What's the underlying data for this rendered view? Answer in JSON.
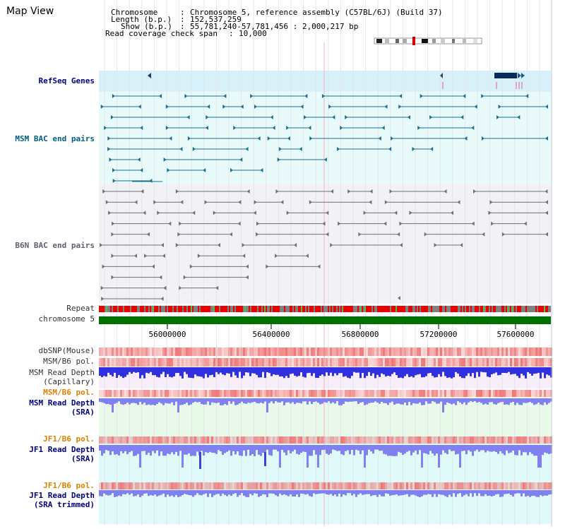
{
  "app": {
    "title": "Map View"
  },
  "info": [
    {
      "label": "Chromosome",
      "value": "Chromosome 5, reference assembly (C57BL/6J) (Build 37)"
    },
    {
      "label": "Length (b.p.)",
      "value": "152,537,259"
    },
    {
      "label": "Show (b.p.)",
      "value": "55,781,240-57,781,456 : 2,000,217 bp"
    },
    {
      "label": "Read coverage check span",
      "value": "10,000"
    }
  ],
  "tracks": {
    "refseq": "RefSeq Genes",
    "msm_bac": "MSM BAC end pairs",
    "b6n_bac": "B6N BAC end pairs",
    "repeat": "Repeat",
    "chromosome": "chromosome 5",
    "dbsnp": "dbSNP(Mouse)",
    "msm_b6_pol_1": "MSM/B6 pol.",
    "msm_depth_cap_1": "MSM Read Depth",
    "msm_depth_cap_2": "(Capillary)",
    "msm_b6_pol_2": "MSM/B6 pol.",
    "msm_depth_sra_1": "MSM Read Depth",
    "msm_depth_sra_2": "(SRA)",
    "jf1_b6_pol_1": "JF1/B6 pol.",
    "jf1_depth_sra_1": "JF1 Read Depth",
    "jf1_depth_sra_2": "(SRA)",
    "jf1_b6_pol_2": "JF1/B6 pol.",
    "jf1_depth_trim_1": "JF1 Read Depth",
    "jf1_depth_trim_2": "(SRA trimmed)"
  },
  "axis": {
    "ticks": [
      "56000000",
      "56400000",
      "56800000",
      "57200000",
      "57600000"
    ]
  },
  "colors": {
    "refseq_band": "#d8f0fa",
    "bac_band": "#e8fafa",
    "b6n_band": "#f2f2f6",
    "msm_bac": "#1a6e8e",
    "b6n_bac": "#707070",
    "chromosome": "#007000",
    "repeat_red": "#e80000",
    "repeat_gray": "#808080",
    "depth_blue": "#3030e0",
    "depth_light": "#8080f0",
    "pol_red": "#f07070",
    "label_navy": "#000080",
    "label_teal": "#005f7f",
    "label_orange": "#e08000",
    "label_gray": "#333333"
  }
}
